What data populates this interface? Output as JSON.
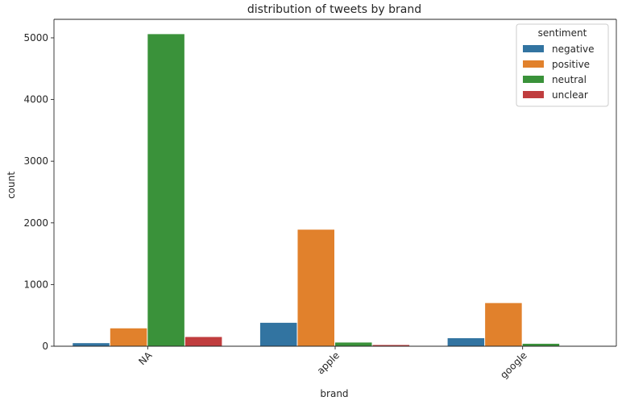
{
  "chart_data": {
    "type": "bar",
    "title": "distribution of tweets by brand",
    "xlabel": "brand",
    "ylabel": "count",
    "categories": [
      "NA",
      "apple",
      "google"
    ],
    "ylim": [
      0,
      5300
    ],
    "yticks": [
      0,
      1000,
      2000,
      3000,
      4000,
      5000
    ],
    "legend": {
      "title": "sentiment",
      "placement": "top-right"
    },
    "series": [
      {
        "name": "negative",
        "color": "#3274a1",
        "values": [
          50,
          380,
          130
        ]
      },
      {
        "name": "positive",
        "color": "#e1812c",
        "values": [
          290,
          1890,
          700
        ]
      },
      {
        "name": "neutral",
        "color": "#3a923a",
        "values": [
          5060,
          60,
          40
        ]
      },
      {
        "name": "unclear",
        "color": "#c03d3e",
        "values": [
          150,
          20,
          0
        ]
      }
    ],
    "grid": false
  }
}
